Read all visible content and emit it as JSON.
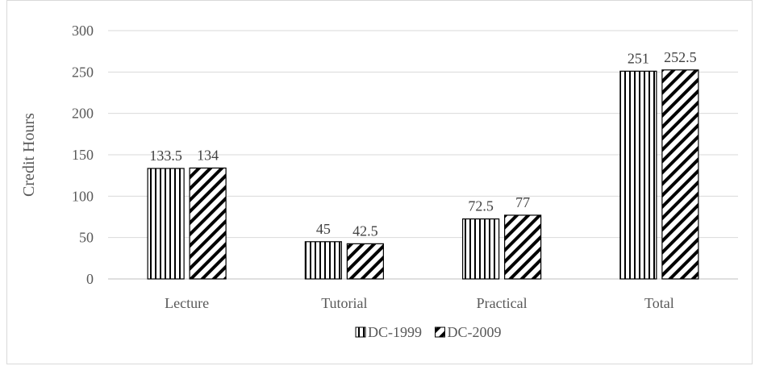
{
  "chart_data": {
    "type": "bar",
    "title": "",
    "xlabel": "",
    "ylabel": "Credit Hours",
    "ylim": [
      0,
      300
    ],
    "yticks": [
      0,
      50,
      100,
      150,
      200,
      250,
      300
    ],
    "grid": true,
    "legend_position": "bottom",
    "categories": [
      "Lecture",
      "Tutorial",
      "Practical",
      "Total"
    ],
    "series": [
      {
        "name": "DC-1999",
        "values": [
          133.5,
          45,
          72.5,
          251
        ],
        "value_labels": [
          "133.5",
          "45",
          "72.5",
          "251"
        ],
        "pattern": "vertical-stripes",
        "color": "#000000"
      },
      {
        "name": "DC-2009",
        "values": [
          134,
          42.5,
          77,
          252.5
        ],
        "value_labels": [
          "134",
          "42.5",
          "77",
          "252.5"
        ],
        "pattern": "diagonal-stripes",
        "color": "#000000"
      }
    ]
  }
}
